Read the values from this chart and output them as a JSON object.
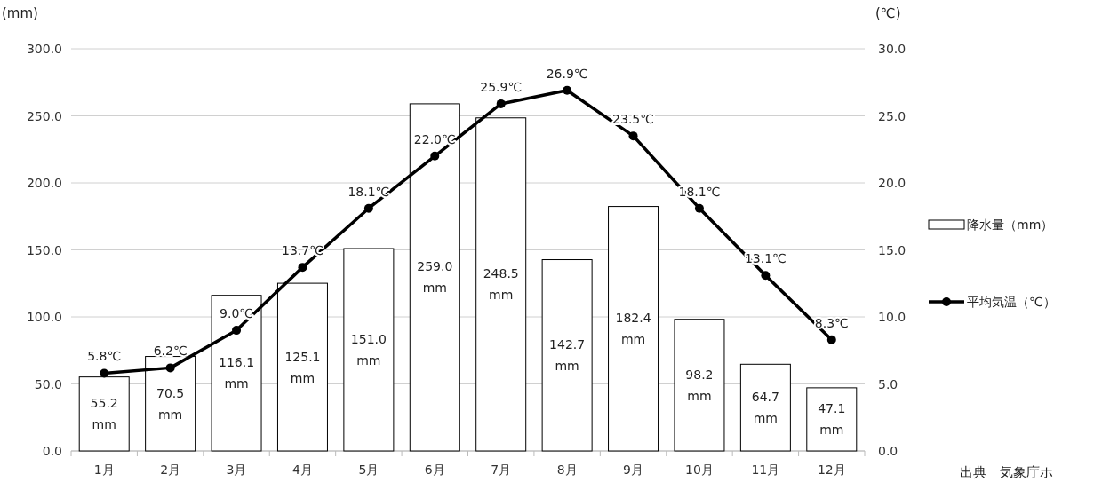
{
  "chart_data": {
    "type": "bar",
    "categories": [
      "1月",
      "2月",
      "3月",
      "4月",
      "5月",
      "6月",
      "7月",
      "8月",
      "9月",
      "10月",
      "11月",
      "12月"
    ],
    "series": [
      {
        "name": "降水量（mm）",
        "color": "#ffffff",
        "values": [
          55.2,
          70.5,
          116.1,
          125.1,
          151.0,
          259.0,
          248.5,
          142.7,
          182.4,
          98.2,
          64.7,
          47.1
        ],
        "value_labels": [
          "55.2 mm",
          "70.5 mm",
          "116.1 mm",
          "125.1 mm",
          "151.0 mm",
          "259.0 mm",
          "248.5 mm",
          "142.7 mm",
          "182.4 mm",
          "98.2 mm",
          "64.7 mm",
          "47.1 mm"
        ]
      },
      {
        "name": "平均気温（℃）",
        "type": "line",
        "axis": "y2",
        "color": "#000000",
        "marker": "circle",
        "values": [
          5.8,
          6.2,
          9.0,
          13.7,
          18.1,
          22.0,
          25.9,
          26.9,
          23.5,
          18.1,
          13.1,
          8.3
        ],
        "value_labels": [
          "5.8℃",
          "6.2℃",
          "9.0℃",
          "13.7℃",
          "18.1℃",
          "22.0℃",
          "25.9℃",
          "26.9℃",
          "23.5℃",
          "18.1℃",
          "13.1℃",
          "8.3℃"
        ]
      }
    ],
    "ylabel": "(mm)",
    "y2label": "(℃)",
    "ylim": [
      0,
      300
    ],
    "yticks": [
      {
        "value": 0,
        "label": "0.0"
      },
      {
        "value": 50,
        "label": "50.0"
      },
      {
        "value": 100,
        "label": "100.0"
      },
      {
        "value": 150,
        "label": "150.0"
      },
      {
        "value": 200,
        "label": "200.0"
      },
      {
        "value": 250,
        "label": "250.0"
      },
      {
        "value": 300,
        "label": "300.0"
      }
    ],
    "y2lim": [
      0,
      30
    ],
    "y2ticks": [
      {
        "value": 0,
        "label": "0.0"
      },
      {
        "value": 5,
        "label": "5.0"
      },
      {
        "value": 10,
        "label": "10.0"
      },
      {
        "value": 15,
        "label": "15.0"
      },
      {
        "value": 20,
        "label": "20.0"
      },
      {
        "value": 25,
        "label": "25.0"
      },
      {
        "value": 30,
        "label": "30.0"
      }
    ],
    "grid": "y",
    "legend": "right",
    "annotations": [
      "出典　気象庁ホ"
    ]
  }
}
